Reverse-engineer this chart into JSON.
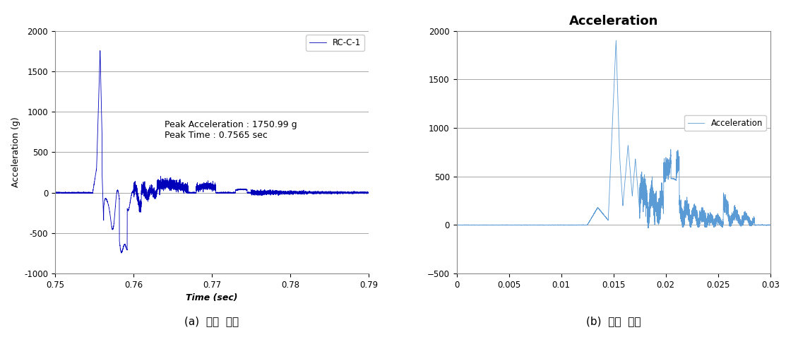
{
  "left_chart": {
    "xlim": [
      0.75,
      0.79
    ],
    "ylim": [
      -1000,
      2000
    ],
    "xlabel": "Time (sec)",
    "ylabel": "Acceleration (g)",
    "yticks": [
      -1000,
      -500,
      0,
      500,
      1000,
      1500,
      2000
    ],
    "xticks": [
      0.75,
      0.76,
      0.77,
      0.78,
      0.79
    ],
    "legend_label": "RC-C-1",
    "line_color": "#0000bb",
    "annotation_line1": "Peak Acceleration : 1750.99 g",
    "annotation_line2": "Peak Time : 0.7565 sec",
    "caption": "(a)  실험  결과"
  },
  "right_chart": {
    "xlim": [
      0,
      0.03
    ],
    "ylim": [
      -500,
      2000
    ],
    "title": "Acceleration",
    "yticks": [
      -500,
      0,
      500,
      1000,
      1500,
      2000
    ],
    "xtick_values": [
      0,
      0.005,
      0.01,
      0.015,
      0.02,
      0.025,
      0.03
    ],
    "xtick_labels": [
      "0",
      "0.005",
      "0.01",
      "0.015",
      "0.02",
      "0.025",
      "0.03"
    ],
    "legend_label": "Acceleration",
    "line_color": "#5b9bd5",
    "caption": "(b)  해석  결과"
  },
  "bg_color": "#ffffff",
  "grid_color": "#999999",
  "spine_color": "#888888"
}
